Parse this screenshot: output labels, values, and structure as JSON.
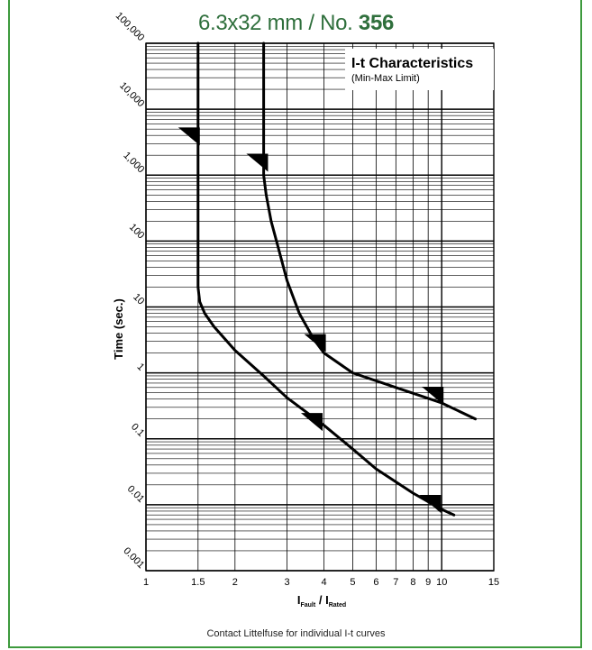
{
  "header": {
    "title_prefix": "6.3x32 mm / No. ",
    "title_number": "356"
  },
  "footer": {
    "note": "Contact Littelfuse for individual I-t curves"
  },
  "colors": {
    "frame": "#3d9a3d",
    "title": "#2f6f3c",
    "ink": "#000000"
  },
  "chart_data": {
    "type": "line",
    "title": "I-t Characteristics",
    "subtitle": "(Min-Max Limit)",
    "xlabel_main": "I",
    "xlabel_num_sub": "Fault",
    "xlabel_sep": " / ",
    "xlabel_den_sub": "Rated",
    "ylabel": "Time (sec.)",
    "x_scale": "log",
    "y_scale": "log",
    "xlim": [
      1,
      15
    ],
    "ylim": [
      0.001,
      100000
    ],
    "x_ticks": [
      1,
      1.5,
      2,
      3,
      4,
      5,
      6,
      7,
      8,
      9,
      10,
      15
    ],
    "x_tick_labels": [
      "1",
      "1.5",
      "2",
      "3",
      "4",
      "5",
      "6",
      "7",
      "8",
      "9",
      "10",
      "15"
    ],
    "y_ticks": [
      0.001,
      0.01,
      0.1,
      1,
      10,
      100,
      1000,
      10000,
      100000
    ],
    "y_tick_labels": [
      "0.001",
      "0.01",
      "0.1",
      "1",
      "10",
      "100",
      "1,000",
      "10,000",
      "100,000"
    ],
    "grid": true,
    "series": [
      {
        "x": [
          1.5,
          1.5,
          1.5,
          1.5,
          1.52,
          1.58,
          1.7,
          2.0,
          2.5,
          3.0,
          4.0,
          5.0,
          6.0,
          8.0,
          10.0,
          11.0
        ],
        "y": [
          100000,
          1000,
          100,
          20,
          12,
          8,
          5,
          2.2,
          0.9,
          0.42,
          0.16,
          0.07,
          0.035,
          0.015,
          0.0085,
          0.007
        ],
        "markers": [
          {
            "x": 1.5,
            "y": 3000
          },
          {
            "x": 3.9,
            "y": 0.14
          },
          {
            "x": 9.8,
            "y": 0.008
          }
        ]
      },
      {
        "x": [
          2.5,
          2.5,
          2.5,
          2.55,
          2.65,
          2.8,
          3.0,
          3.3,
          3.7,
          4.0,
          5.0,
          7.0,
          10.0,
          13.0
        ],
        "y": [
          100000,
          3000,
          1000,
          500,
          200,
          80,
          25,
          8,
          3.2,
          2.0,
          1.0,
          0.6,
          0.35,
          0.2
        ],
        "markers": [
          {
            "x": 2.55,
            "y": 1200
          },
          {
            "x": 4.0,
            "y": 2.2
          },
          {
            "x": 10.0,
            "y": 0.35
          }
        ]
      }
    ]
  }
}
